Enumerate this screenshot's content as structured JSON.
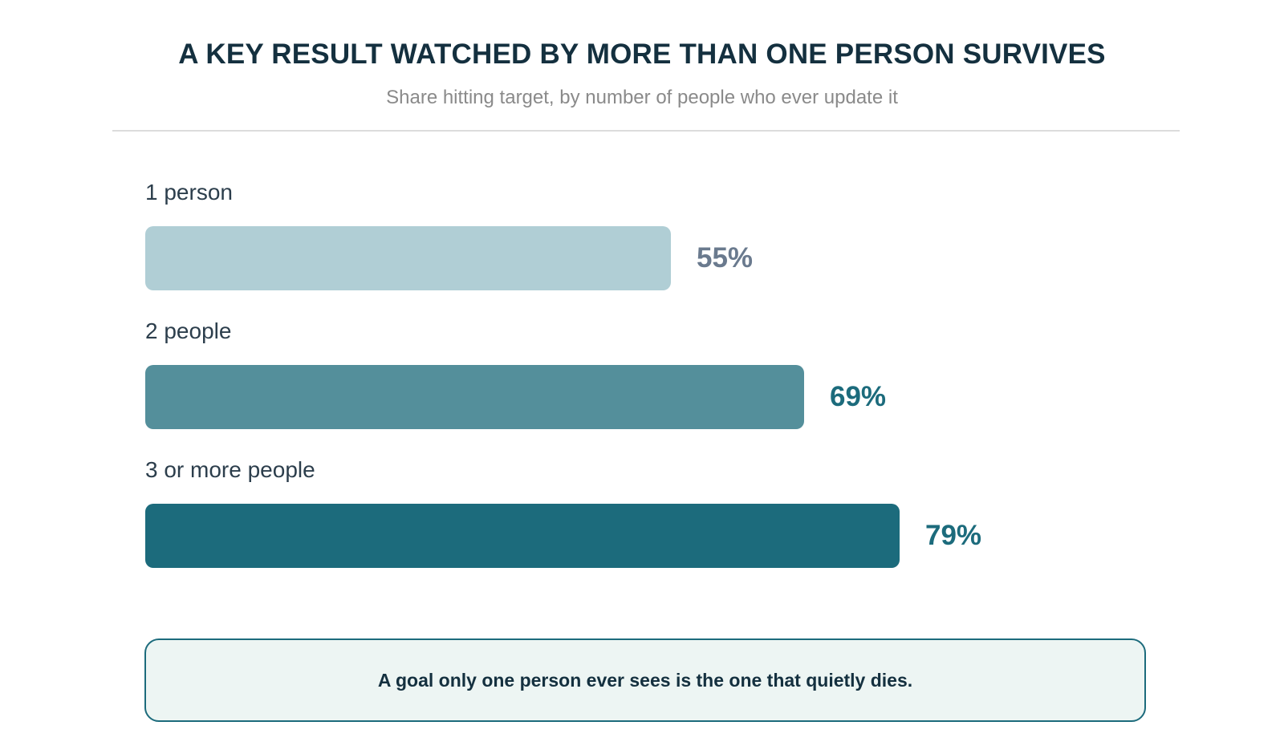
{
  "header": {
    "title": "A KEY RESULT WATCHED BY MORE THAN ONE PERSON SURVIVES",
    "subtitle": "Share hitting target, by number of people who ever update it"
  },
  "chart_data": {
    "type": "bar",
    "orientation": "horizontal",
    "categories": [
      "1 person",
      "2 people",
      "3 or more people"
    ],
    "values": [
      55,
      69,
      79
    ],
    "value_labels": [
      "55%",
      "69%",
      "79%"
    ],
    "unit": "%",
    "xlim": [
      0,
      100
    ],
    "grid": false,
    "bar_colors": [
      "#b0ced5",
      "#548f9b",
      "#1c6b7c"
    ],
    "value_label_colors": [
      "#6a7a8e",
      "#1c6b7c",
      "#1c6b7c"
    ]
  },
  "callout": {
    "text": "A goal only one person ever sees is the one that quietly dies."
  }
}
